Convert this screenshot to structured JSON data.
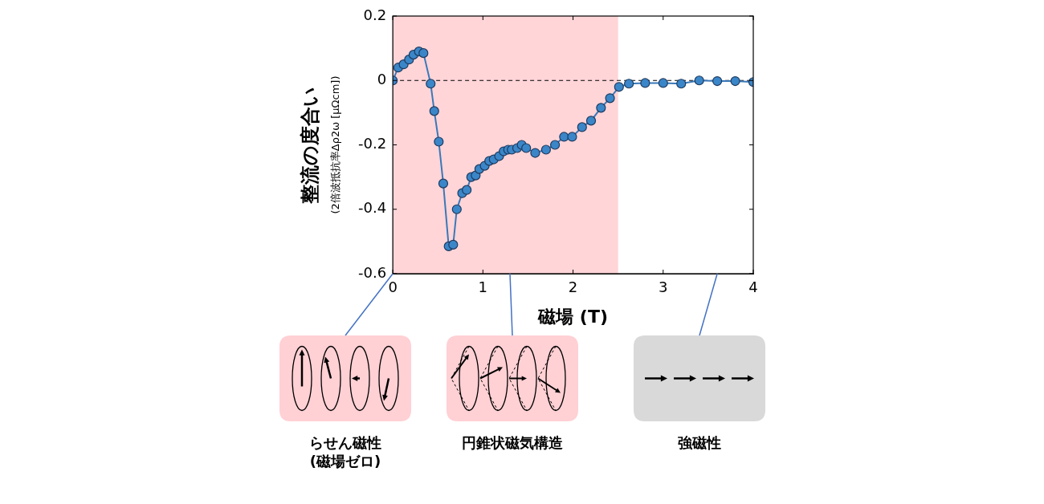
{
  "chart_data": {
    "type": "line",
    "x_label": "磁場 (T)",
    "y_label": "整流の度合い",
    "y_sublabel": "(2倍波抵抗率Δρ2ω [μΩcm])",
    "x": [
      0,
      0.06,
      0.12,
      0.18,
      0.23,
      0.29,
      0.34,
      0.42,
      0.46,
      0.51,
      0.56,
      0.62,
      0.67,
      0.71,
      0.77,
      0.82,
      0.87,
      0.92,
      0.96,
      1.02,
      1.07,
      1.12,
      1.18,
      1.23,
      1.28,
      1.32,
      1.38,
      1.43,
      1.48,
      1.58,
      1.7,
      1.8,
      1.9,
      1.99,
      2.1,
      2.2,
      2.31,
      2.41,
      2.51,
      2.62,
      2.8,
      3.0,
      3.2,
      3.4,
      3.6,
      3.8,
      4.0
    ],
    "values": [
      0.0,
      0.04,
      0.05,
      0.065,
      0.08,
      0.09,
      0.085,
      -0.01,
      -0.095,
      -0.19,
      -0.32,
      -0.515,
      -0.51,
      -0.4,
      -0.35,
      -0.34,
      -0.3,
      -0.295,
      -0.275,
      -0.265,
      -0.25,
      -0.245,
      -0.235,
      -0.22,
      -0.215,
      -0.215,
      -0.21,
      -0.2,
      -0.21,
      -0.225,
      -0.215,
      -0.2,
      -0.175,
      -0.175,
      -0.145,
      -0.125,
      -0.085,
      -0.055,
      -0.02,
      -0.01,
      -0.008,
      -0.008,
      -0.01,
      0.0,
      -0.002,
      -0.002,
      -0.005
    ],
    "color": "#3b78b8",
    "marker": "circle",
    "line_style": "solid",
    "xlim": [
      0,
      4
    ],
    "xticks": [
      0,
      1,
      2,
      3,
      4
    ],
    "ylim": [
      -0.6,
      0.2
    ],
    "yticks": [
      -0.6,
      -0.4,
      -0.2,
      0,
      0.2
    ],
    "grid": false,
    "highlight_x": [
      0,
      2.5
    ],
    "highlight_color": "#ffd5d8",
    "reference_line_y": 0,
    "panels": [
      {
        "x": 0,
        "label": "らせん磁性",
        "sublabel": "(磁場ゼロ)",
        "color": "#ffd0d4"
      },
      {
        "x": 1.3,
        "label": "円錐状磁気構造",
        "color": "#ffd0d4"
      },
      {
        "x": 3.6,
        "label": "強磁性",
        "color": "#d9d9d9"
      }
    ]
  }
}
